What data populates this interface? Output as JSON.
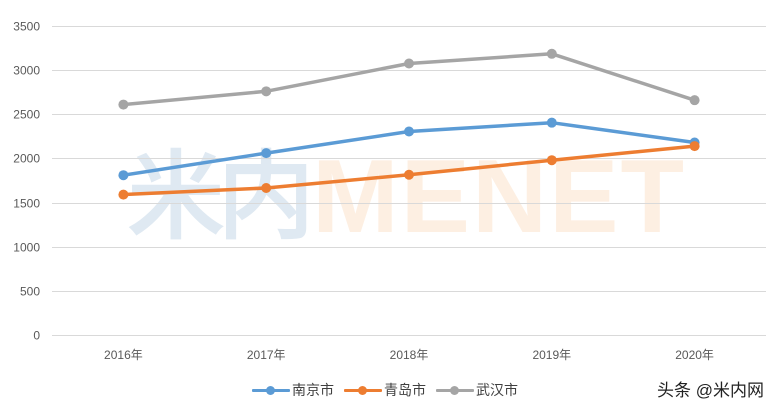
{
  "chart_data": {
    "type": "line",
    "title": "",
    "xlabel": "",
    "ylabel": "",
    "categories": [
      "2016年",
      "2017年",
      "2018年",
      "2019年",
      "2020年"
    ],
    "ylim": [
      0,
      3500
    ],
    "yticks": [
      0,
      500,
      1000,
      1500,
      2000,
      2500,
      3000,
      3500
    ],
    "grid": true,
    "legend_position": "bottom",
    "series": [
      {
        "name": "南京市",
        "color": "#5b9bd5",
        "values": [
          1810,
          2060,
          2305,
          2405,
          2180
        ]
      },
      {
        "name": "青岛市",
        "color": "#ed7d31",
        "values": [
          1590,
          1665,
          1815,
          1980,
          2140
        ]
      },
      {
        "name": "武汉市",
        "color": "#a5a5a5",
        "values": [
          2610,
          2760,
          3075,
          3185,
          2660
        ]
      }
    ]
  },
  "watermark": {
    "cn": "米内",
    "en": "MENET"
  },
  "brand": "头条 @米内网"
}
